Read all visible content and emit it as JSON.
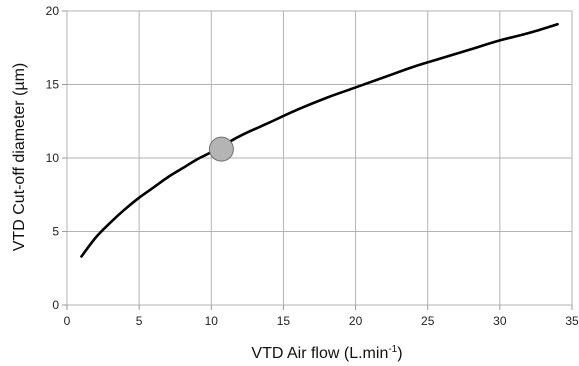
{
  "chart_data": {
    "type": "line",
    "title": "",
    "xlabel": "VTD Air flow (L.min",
    "xlabel_sup": "-1",
    "xlabel_suffix": ")",
    "ylabel": "VTD Cut-off diameter (µm)",
    "xlim": [
      0,
      35
    ],
    "ylim": [
      0,
      20
    ],
    "x_ticks": [
      0,
      5,
      10,
      15,
      20,
      25,
      30,
      35
    ],
    "y_ticks": [
      0,
      5,
      10,
      15,
      20
    ],
    "grid": true,
    "legend": "none",
    "series": [
      {
        "color": "#000000",
        "x": [
          1,
          2,
          3,
          4,
          5,
          6,
          7,
          8,
          9,
          10,
          12,
          14,
          16,
          18,
          20,
          22,
          24,
          26,
          28,
          30,
          32,
          34
        ],
        "y": [
          3.3,
          4.6,
          5.6,
          6.5,
          7.3,
          8.0,
          8.7,
          9.3,
          9.9,
          10.4,
          11.5,
          12.4,
          13.3,
          14.1,
          14.8,
          15.5,
          16.2,
          16.8,
          17.4,
          18.0,
          18.5,
          19.1
        ]
      }
    ],
    "annotations": [
      {
        "shape": "circle",
        "x": 10.7,
        "y": 10.6,
        "fill": "#b4b4b4",
        "stroke": "#6e6e6e"
      }
    ]
  }
}
